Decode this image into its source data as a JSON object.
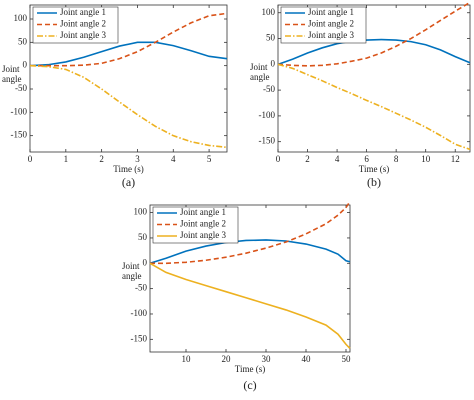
{
  "chart_data": [
    {
      "type": "line",
      "caption": "(a)",
      "xlabel": "Time (s)",
      "ylabel": "Joint angle",
      "legend": "upper left",
      "x": [
        0,
        0.5,
        1,
        1.5,
        2,
        2.5,
        3,
        3.5,
        4,
        4.5,
        5,
        5.5
      ],
      "series": [
        {
          "name": "Joint angle 1",
          "color": "#0072bd",
          "style": "solid",
          "values": [
            0,
            2,
            8,
            18,
            30,
            42,
            50,
            50,
            43,
            32,
            20,
            15
          ]
        },
        {
          "name": "Joint angle 2",
          "color": "#d95319",
          "style": "dashed",
          "values": [
            0,
            0,
            0,
            1,
            5,
            15,
            30,
            50,
            72,
            92,
            107,
            112
          ]
        },
        {
          "name": "Joint angle 3",
          "color": "#edb120",
          "style": "dashdot",
          "values": [
            0,
            -2,
            -8,
            -25,
            -50,
            -78,
            -105,
            -130,
            -150,
            -163,
            -171,
            -175
          ]
        }
      ],
      "xlim": [
        0,
        5.5
      ],
      "xticks": [
        0,
        1,
        2,
        3,
        4,
        5
      ],
      "ylim": [
        -185,
        130
      ],
      "yticks": [
        -150,
        -100,
        -50,
        0,
        50,
        100
      ]
    },
    {
      "type": "line",
      "caption": "(b)",
      "xlabel": "Time (s)",
      "ylabel": "Joint angle",
      "legend": "upper left",
      "x": [
        0,
        1,
        2,
        3,
        4,
        5,
        6,
        7,
        8,
        9,
        10,
        11,
        12,
        13
      ],
      "series": [
        {
          "name": "Joint angle 1",
          "color": "#0072bd",
          "style": "solid",
          "values": [
            0,
            10,
            22,
            32,
            40,
            45,
            47,
            48,
            47,
            44,
            38,
            28,
            15,
            3
          ]
        },
        {
          "name": "Joint angle 2",
          "color": "#d95319",
          "style": "dashed",
          "values": [
            0,
            -2,
            -3,
            -2,
            1,
            6,
            12,
            22,
            35,
            50,
            67,
            85,
            103,
            120
          ]
        },
        {
          "name": "Joint angle 3",
          "color": "#edb120",
          "style": "dashdot",
          "values": [
            0,
            -8,
            -20,
            -32,
            -45,
            -57,
            -70,
            -82,
            -95,
            -108,
            -122,
            -138,
            -155,
            -165
          ]
        }
      ],
      "xlim": [
        0,
        13
      ],
      "xticks": [
        0,
        2,
        4,
        6,
        8,
        10,
        12
      ],
      "ylim": [
        -170,
        115
      ],
      "yticks": [
        -150,
        -100,
        -50,
        0,
        50,
        100
      ]
    },
    {
      "type": "line",
      "caption": "(c)",
      "xlabel": "Time (s)",
      "ylabel": "Joint angle",
      "legend": "upper left",
      "x": [
        1,
        5,
        10,
        15,
        20,
        25,
        30,
        35,
        40,
        45,
        48,
        50,
        51
      ],
      "series": [
        {
          "name": "Joint angle 1",
          "color": "#0072bd",
          "style": "solid",
          "values": [
            0,
            10,
            24,
            34,
            41,
            45,
            46,
            44,
            38,
            28,
            18,
            5,
            3
          ]
        },
        {
          "name": "Joint angle 2",
          "color": "#d95319",
          "style": "dashed",
          "values": [
            0,
            0,
            2,
            6,
            12,
            20,
            30,
            42,
            58,
            78,
            95,
            110,
            122
          ]
        },
        {
          "name": "Joint angle 3",
          "color": "#edb120",
          "style": "solid",
          "values": [
            0,
            -18,
            -32,
            -44,
            -56,
            -68,
            -80,
            -92,
            -106,
            -122,
            -140,
            -160,
            -168
          ]
        }
      ],
      "xlim": [
        1,
        51
      ],
      "xticks": [
        10,
        20,
        30,
        40,
        50
      ],
      "ylim": [
        -175,
        115
      ],
      "yticks": [
        -150,
        -100,
        -50,
        0,
        50,
        100
      ]
    }
  ]
}
